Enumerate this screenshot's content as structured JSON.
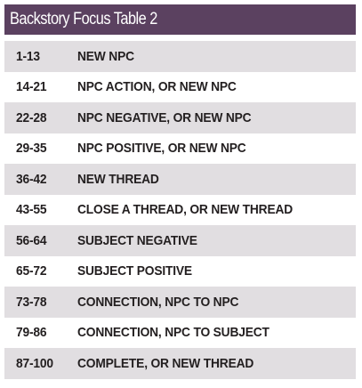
{
  "title": "Backstory Focus Table 2",
  "rows": [
    {
      "range": "1-13",
      "result": "NEW NPC"
    },
    {
      "range": "14-21",
      "result": "NPC ACTION, OR NEW NPC"
    },
    {
      "range": "22-28",
      "result": "NPC NEGATIVE, OR NEW NPC"
    },
    {
      "range": "29-35",
      "result": "NPC POSITIVE, OR NEW NPC"
    },
    {
      "range": "36-42",
      "result": "NEW THREAD"
    },
    {
      "range": "43-55",
      "result": "CLOSE A THREAD, OR NEW THREAD"
    },
    {
      "range": "56-64",
      "result": "SUBJECT NEGATIVE"
    },
    {
      "range": "65-72",
      "result": "SUBJECT POSITIVE"
    },
    {
      "range": "73-78",
      "result": "CONNECTION, NPC TO NPC"
    },
    {
      "range": "79-86",
      "result": "CONNECTION, NPC TO SUBJECT"
    },
    {
      "range": "87-100",
      "result": "COMPLETE, OR NEW THREAD"
    }
  ],
  "colors": {
    "title_background": "#5b4160",
    "title_text": "#ffffff",
    "row_shade": "#e1dee1",
    "row_text": "#231f20"
  }
}
